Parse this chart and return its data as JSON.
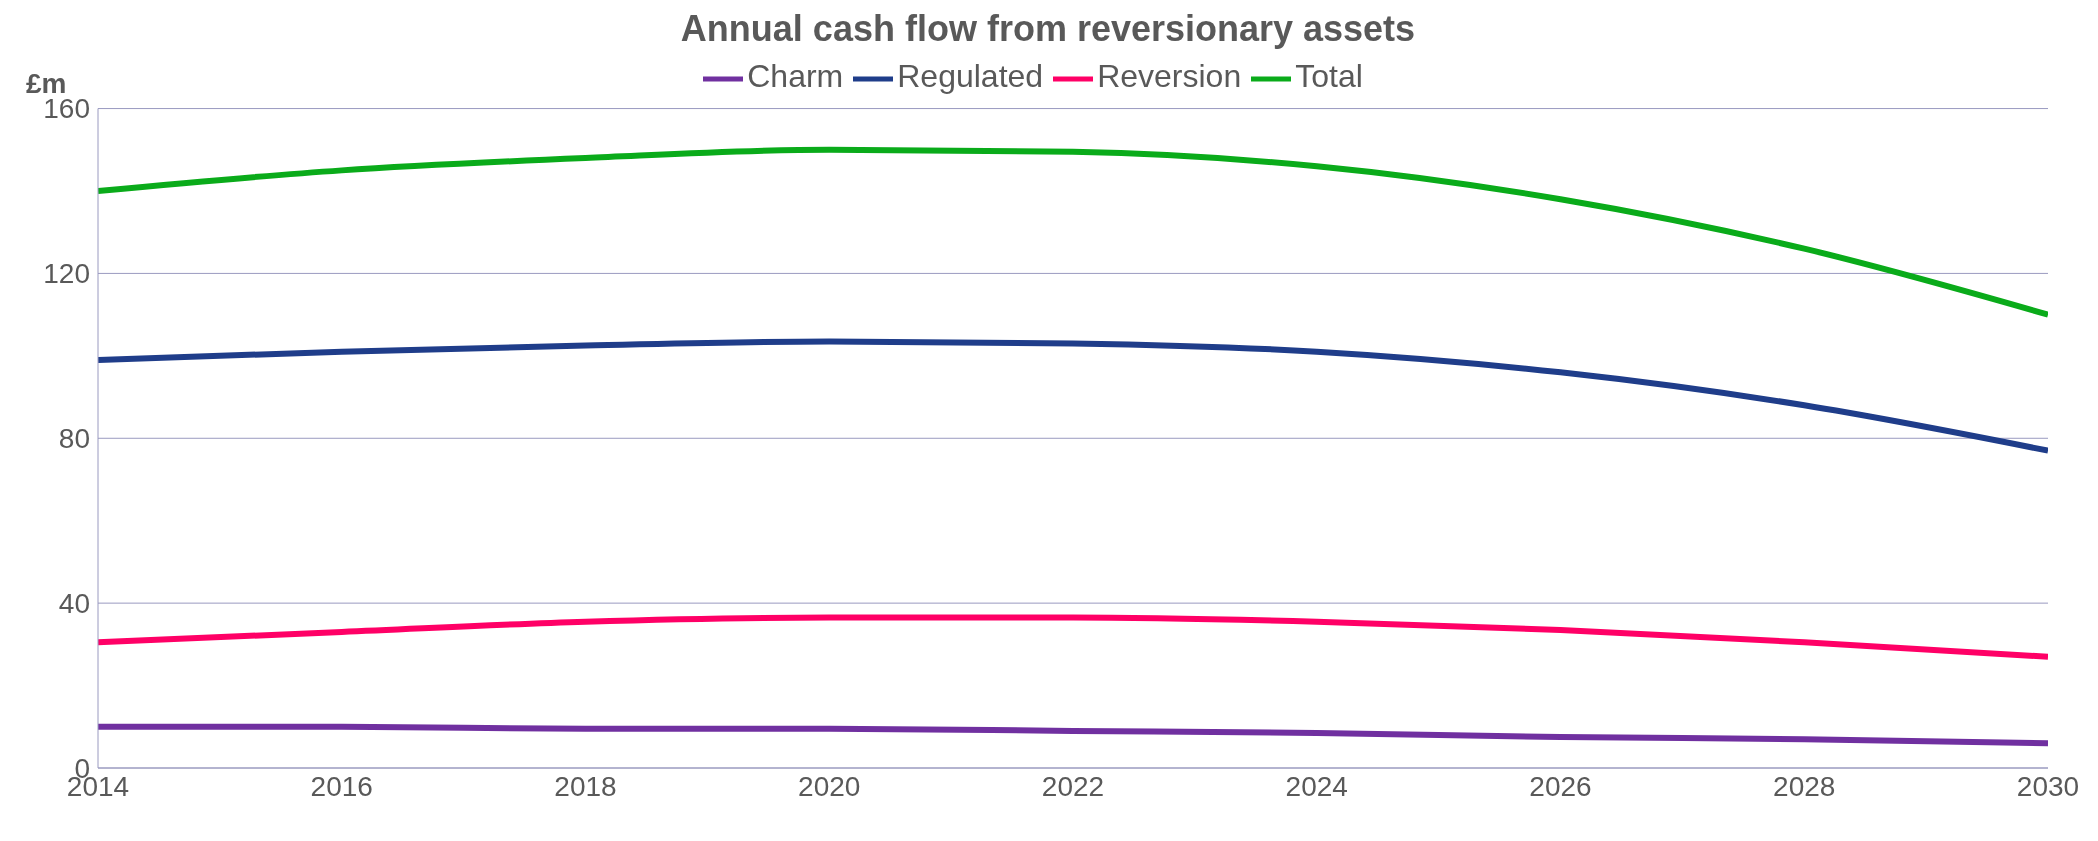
{
  "chart_data": {
    "type": "line",
    "title": "Annual cash flow from reversionary assets",
    "ylabel": "£m",
    "x": [
      2014,
      2016,
      2018,
      2020,
      2022,
      2024,
      2026,
      2028,
      2030
    ],
    "series": [
      {
        "name": "Regulated",
        "color": "#1f3d8a",
        "values": [
          99,
          101,
          102.5,
          103.5,
          103,
          101,
          96,
          88,
          77
        ]
      },
      {
        "name": "Reversion",
        "color": "#ff0066",
        "values": [
          30.5,
          33,
          35.5,
          36.5,
          36.5,
          35.5,
          33.5,
          30.5,
          27
        ]
      },
      {
        "name": "Charm",
        "color": "#7030a0",
        "values": [
          10,
          10,
          9.5,
          9.5,
          9,
          8.5,
          7.5,
          7,
          6
        ]
      },
      {
        "name": "Total",
        "color": "#0aab1a",
        "values": [
          140,
          145,
          148,
          150,
          149.5,
          146,
          138,
          126,
          110
        ]
      }
    ],
    "xlim": [
      2014,
      2030
    ],
    "xticks": [
      2014,
      2016,
      2018,
      2020,
      2022,
      2024,
      2026,
      2028,
      2030
    ],
    "ylim": [
      0,
      160
    ],
    "yticks": [
      0,
      40,
      80,
      120,
      160
    ],
    "grid": "y",
    "legend": "top",
    "marker": "none",
    "line_style": "solid"
  }
}
